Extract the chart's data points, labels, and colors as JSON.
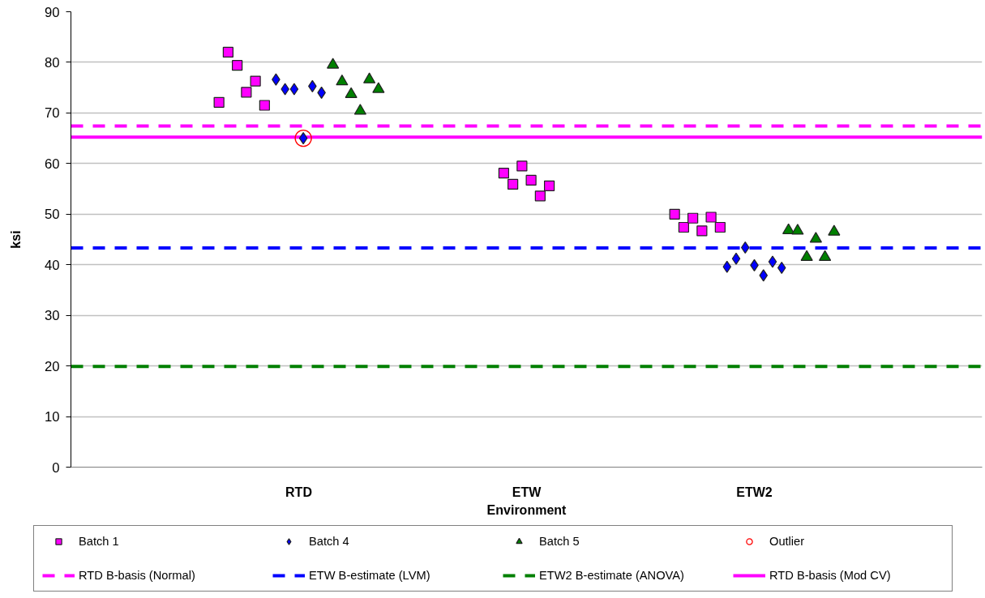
{
  "chart_data": {
    "type": "scatter",
    "xlabel": "Environment",
    "ylabel": "ksi",
    "categories": [
      "RTD",
      "ETW",
      "ETW2"
    ],
    "ylim": [
      0,
      90
    ],
    "yticks": [
      0,
      10,
      20,
      30,
      40,
      50,
      60,
      70,
      80,
      90
    ],
    "grid": "y",
    "legend": "bottom",
    "series": [
      {
        "name": "Batch 1",
        "marker": "square",
        "color": "#ff00ff",
        "x": [
          "RTD",
          "RTD",
          "RTD",
          "RTD",
          "RTD",
          "RTD",
          "ETW",
          "ETW",
          "ETW",
          "ETW",
          "ETW",
          "ETW",
          "ETW2",
          "ETW2",
          "ETW2",
          "ETW2",
          "ETW2",
          "ETW2"
        ],
        "values": [
          72.1,
          82.0,
          79.4,
          74.1,
          76.3,
          71.5,
          58.1,
          55.9,
          59.5,
          56.7,
          53.6,
          55.6,
          50.0,
          47.4,
          49.2,
          46.7,
          49.4,
          47.4
        ]
      },
      {
        "name": "Batch 4",
        "marker": "diamond",
        "color": "#0000ff",
        "x": [
          "RTD",
          "RTD",
          "RTD",
          "RTD",
          "RTD",
          "RTD",
          "ETW2",
          "ETW2",
          "ETW2",
          "ETW2",
          "ETW2",
          "ETW2",
          "ETW2"
        ],
        "values": [
          76.6,
          74.7,
          74.7,
          65.0,
          75.3,
          74.0,
          39.6,
          41.2,
          43.4,
          39.9,
          37.9,
          40.6,
          39.4
        ]
      },
      {
        "name": "Batch 5",
        "marker": "triangle",
        "color": "#008000",
        "x": [
          "RTD",
          "RTD",
          "RTD",
          "RTD",
          "RTD",
          "RTD",
          "ETW2",
          "ETW2",
          "ETW2",
          "ETW2",
          "ETW2",
          "ETW2"
        ],
        "values": [
          79.5,
          76.2,
          73.7,
          70.4,
          76.6,
          74.7,
          46.8,
          46.7,
          41.5,
          45.1,
          41.5,
          46.5
        ]
      },
      {
        "name": "Outlier",
        "marker": "circle",
        "color": "#ff0000",
        "x": [
          "RTD"
        ],
        "values": [
          65.0
        ]
      }
    ],
    "ref_lines": [
      {
        "axis": "y",
        "value": 67.4,
        "label": "RTD B-basis (Normal)",
        "color": "#ff00ff",
        "line_style": "dashed"
      },
      {
        "axis": "y",
        "value": 43.3,
        "label": "ETW B-estimate (LVM)",
        "color": "#0000ff",
        "line_style": "dashed"
      },
      {
        "axis": "y",
        "value": 19.9,
        "label": "ETW2 B-estimate (ANOVA)",
        "color": "#008000",
        "line_style": "dashed"
      },
      {
        "axis": "y",
        "value": 65.2,
        "label": "RTD B-basis (Mod CV)",
        "color": "#ff00ff",
        "line_style": "solid"
      }
    ]
  }
}
